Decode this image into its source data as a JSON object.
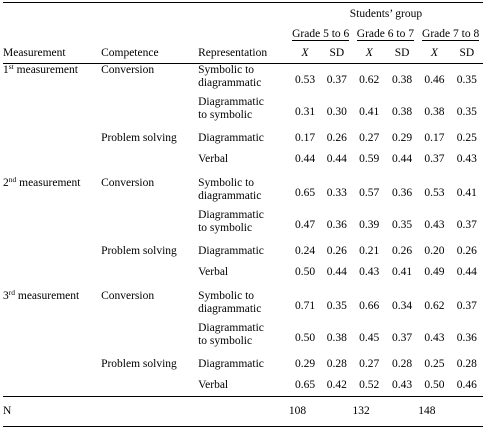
{
  "header": {
    "students_group": "Students’ group",
    "measurement": "Measurement",
    "competence": "Competence",
    "representation": "Representation",
    "grades": [
      "Grade 5 to 6",
      "Grade 6 to 7",
      "Grade 7 to 8"
    ],
    "x_label": "X",
    "sd_label": "SD"
  },
  "measurements": [
    {
      "num": "1",
      "sup": "st",
      "label": " measurement",
      "rows": [
        {
          "competence": "Conversion",
          "rep1": "Symbolic to",
          "rep2": "diagrammatic",
          "values": [
            "0.53",
            "0.37",
            "0.62",
            "0.38",
            "0.46",
            "0.35"
          ]
        },
        {
          "competence": "",
          "rep1": "Diagrammatic",
          "rep2": "to symbolic",
          "values": [
            "0.31",
            "0.30",
            "0.41",
            "0.38",
            "0.38",
            "0.35"
          ]
        },
        {
          "competence": "Problem solving",
          "rep1": "Diagrammatic",
          "rep2": "",
          "values": [
            "0.17",
            "0.26",
            "0.27",
            "0.29",
            "0.17",
            "0.25"
          ]
        },
        {
          "competence": "",
          "rep1": "Verbal",
          "rep2": "",
          "values": [
            "0.44",
            "0.44",
            "0.59",
            "0.44",
            "0.37",
            "0.43"
          ]
        }
      ]
    },
    {
      "num": "2",
      "sup": "nd",
      "label": " measurement",
      "rows": [
        {
          "competence": "Conversion",
          "rep1": "Symbolic to",
          "rep2": "diagrammatic",
          "values": [
            "0.65",
            "0.33",
            "0.57",
            "0.36",
            "0.53",
            "0.41"
          ]
        },
        {
          "competence": "",
          "rep1": "Diagrammatic",
          "rep2": "to symbolic",
          "values": [
            "0.47",
            "0.36",
            "0.39",
            "0.35",
            "0.43",
            "0.37"
          ]
        },
        {
          "competence": "Problem solving",
          "rep1": "Diagrammatic",
          "rep2": "",
          "values": [
            "0.24",
            "0.26",
            "0.21",
            "0.26",
            "0.20",
            "0.26"
          ]
        },
        {
          "competence": "",
          "rep1": "Verbal",
          "rep2": "",
          "values": [
            "0.50",
            "0.44",
            "0.43",
            "0.41",
            "0.49",
            "0.44"
          ]
        }
      ]
    },
    {
      "num": "3",
      "sup": "rd",
      "label": " measurement",
      "rows": [
        {
          "competence": "Conversion",
          "rep1": "Symbolic to",
          "rep2": "diagrammatic",
          "values": [
            "0.71",
            "0.35",
            "0.66",
            "0.34",
            "0.62",
            "0.37"
          ]
        },
        {
          "competence": "",
          "rep1": "Diagrammatic",
          "rep2": "to symbolic",
          "values": [
            "0.50",
            "0.38",
            "0.45",
            "0.37",
            "0.43",
            "0.36"
          ]
        },
        {
          "competence": "Problem solving",
          "rep1": "Diagrammatic",
          "rep2": "",
          "values": [
            "0.29",
            "0.28",
            "0.27",
            "0.28",
            "0.25",
            "0.28"
          ]
        },
        {
          "competence": "",
          "rep1": "Verbal",
          "rep2": "",
          "values": [
            "0.65",
            "0.42",
            "0.52",
            "0.43",
            "0.50",
            "0.46"
          ]
        }
      ]
    }
  ],
  "n_row": {
    "label": "N",
    "values": [
      "108",
      "132",
      "148"
    ]
  }
}
